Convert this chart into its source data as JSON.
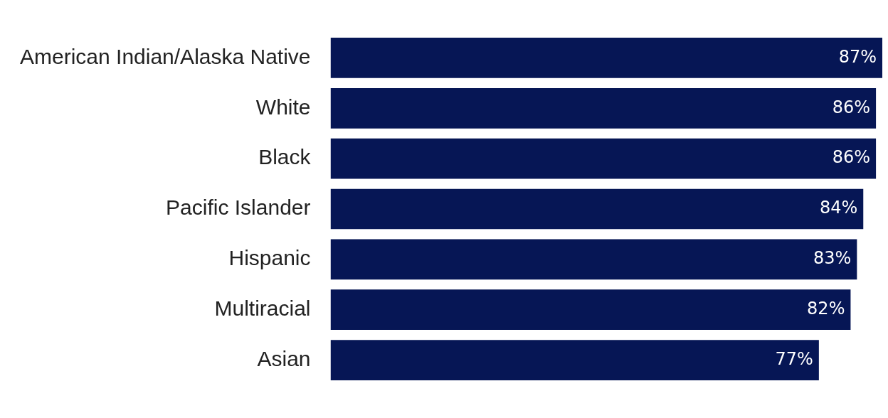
{
  "chart_data": {
    "type": "bar",
    "orientation": "horizontal",
    "categories": [
      "American Indian/Alaska Native",
      "White",
      "Black",
      "Pacific Islander",
      "Hispanic",
      "Multiracial",
      "Asian"
    ],
    "values": [
      87,
      86,
      86,
      84,
      83,
      82,
      77
    ],
    "value_labels": [
      "87%",
      "86%",
      "86%",
      "84%",
      "83%",
      "82%",
      "77%"
    ],
    "color": "#061655",
    "xlim": [
      0,
      87
    ],
    "legend": false
  }
}
